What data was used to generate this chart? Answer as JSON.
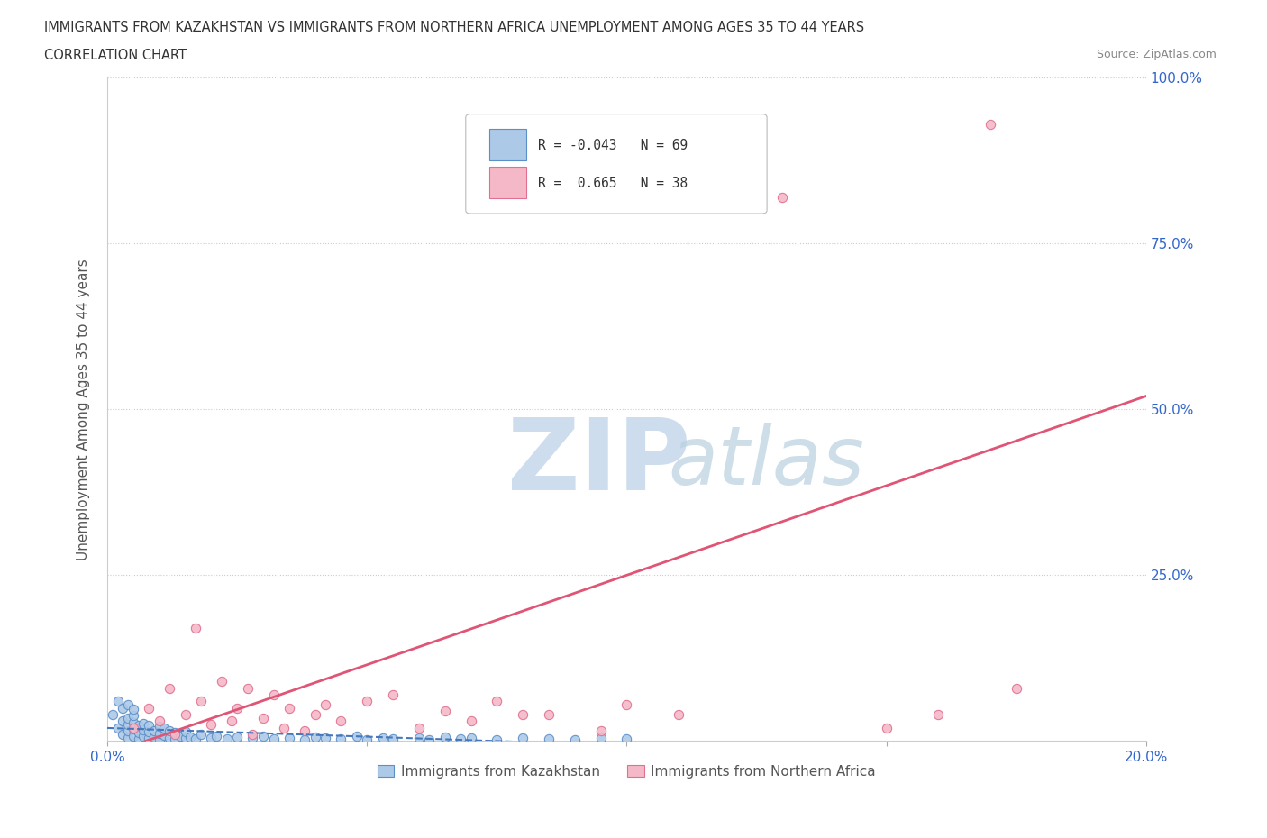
{
  "title_line1": "IMMIGRANTS FROM KAZAKHSTAN VS IMMIGRANTS FROM NORTHERN AFRICA UNEMPLOYMENT AMONG AGES 35 TO 44 YEARS",
  "title_line2": "CORRELATION CHART",
  "source": "Source: ZipAtlas.com",
  "xlabel": "Immigrants from Kazakhstan",
  "xlabel2": "Immigrants from Northern Africa",
  "ylabel": "Unemployment Among Ages 35 to 44 years",
  "xlim": [
    0.0,
    0.2
  ],
  "ylim": [
    0.0,
    1.0
  ],
  "kaz_R": -0.043,
  "kaz_N": 69,
  "nafr_R": 0.665,
  "nafr_N": 38,
  "kaz_color": "#adc9e8",
  "kaz_edge": "#5b8fc7",
  "nafr_color": "#f5b8c8",
  "nafr_edge": "#e07090",
  "trend_kaz_color": "#4477bb",
  "trend_nafr_color": "#e05575",
  "watermark_zip_color": "#c5d8ea",
  "watermark_atlas_color": "#b8cfe0",
  "background_color": "#ffffff",
  "grid_color": "#cccccc",
  "title_color": "#333333",
  "axis_label_color": "#555555",
  "tick_color": "#3366cc",
  "kaz_x": [
    0.001,
    0.002,
    0.002,
    0.003,
    0.003,
    0.003,
    0.004,
    0.004,
    0.004,
    0.004,
    0.004,
    0.005,
    0.005,
    0.005,
    0.005,
    0.005,
    0.006,
    0.006,
    0.006,
    0.007,
    0.007,
    0.007,
    0.008,
    0.008,
    0.008,
    0.009,
    0.009,
    0.01,
    0.01,
    0.01,
    0.011,
    0.011,
    0.012,
    0.012,
    0.013,
    0.013,
    0.014,
    0.015,
    0.015,
    0.016,
    0.017,
    0.018,
    0.02,
    0.021,
    0.023,
    0.025,
    0.028,
    0.03,
    0.032,
    0.035,
    0.038,
    0.04,
    0.042,
    0.045,
    0.048,
    0.05,
    0.053,
    0.055,
    0.06,
    0.062,
    0.065,
    0.068,
    0.07,
    0.075,
    0.08,
    0.085,
    0.09,
    0.095,
    0.1
  ],
  "kaz_y": [
    0.04,
    0.02,
    0.06,
    0.01,
    0.03,
    0.05,
    0.005,
    0.015,
    0.025,
    0.035,
    0.055,
    0.008,
    0.018,
    0.028,
    0.038,
    0.048,
    0.003,
    0.013,
    0.023,
    0.007,
    0.017,
    0.027,
    0.004,
    0.014,
    0.024,
    0.006,
    0.016,
    0.002,
    0.012,
    0.022,
    0.009,
    0.019,
    0.005,
    0.015,
    0.003,
    0.013,
    0.008,
    0.004,
    0.014,
    0.006,
    0.003,
    0.01,
    0.005,
    0.008,
    0.003,
    0.006,
    0.004,
    0.007,
    0.003,
    0.005,
    0.002,
    0.006,
    0.004,
    0.003,
    0.007,
    0.002,
    0.005,
    0.003,
    0.004,
    0.002,
    0.006,
    0.003,
    0.004,
    0.002,
    0.005,
    0.003,
    0.002,
    0.004,
    0.003
  ],
  "nafr_x": [
    0.005,
    0.008,
    0.01,
    0.012,
    0.013,
    0.015,
    0.017,
    0.018,
    0.02,
    0.022,
    0.024,
    0.025,
    0.027,
    0.028,
    0.03,
    0.032,
    0.034,
    0.035,
    0.038,
    0.04,
    0.042,
    0.045,
    0.05,
    0.055,
    0.06,
    0.065,
    0.07,
    0.075,
    0.08,
    0.085,
    0.095,
    0.1,
    0.11,
    0.13,
    0.15,
    0.16,
    0.17,
    0.175
  ],
  "nafr_y": [
    0.02,
    0.05,
    0.03,
    0.08,
    0.01,
    0.04,
    0.17,
    0.06,
    0.025,
    0.09,
    0.03,
    0.05,
    0.08,
    0.01,
    0.035,
    0.07,
    0.02,
    0.05,
    0.015,
    0.04,
    0.055,
    0.03,
    0.06,
    0.07,
    0.02,
    0.045,
    0.03,
    0.06,
    0.04,
    0.04,
    0.015,
    0.055,
    0.04,
    0.82,
    0.02,
    0.04,
    0.93,
    0.08
  ]
}
